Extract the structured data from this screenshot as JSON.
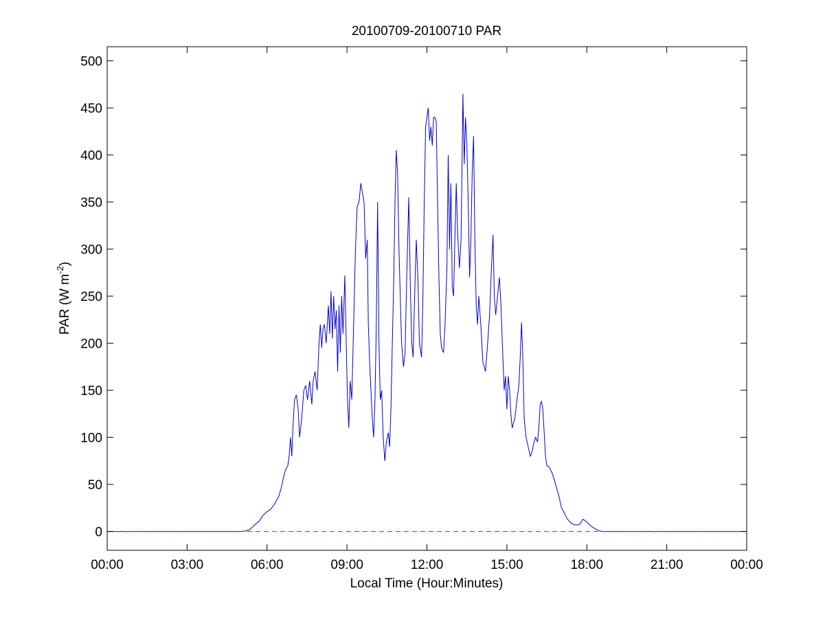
{
  "chart_data": {
    "type": "line",
    "title": "20100709-20100710 PAR",
    "xlabel": "Local Time (Hour:Minutes)",
    "ylabel": {
      "prefix": "PAR (W m",
      "superscript": "-2",
      "suffix": ")"
    },
    "x_unit": "hours",
    "xlim": [
      0,
      24
    ],
    "ylim": [
      -20,
      515
    ],
    "x_ticks": [
      0,
      3,
      6,
      9,
      12,
      15,
      18,
      21,
      24
    ],
    "x_tick_labels": [
      "00:00",
      "03:00",
      "06:00",
      "09:00",
      "12:00",
      "15:00",
      "18:00",
      "21:00",
      "00:00"
    ],
    "y_ticks": [
      0,
      50,
      100,
      150,
      200,
      250,
      300,
      350,
      400,
      450,
      500
    ],
    "y_tick_labels": [
      "0",
      "50",
      "100",
      "150",
      "200",
      "250",
      "300",
      "350",
      "400",
      "450",
      "500"
    ],
    "grid": false,
    "legend": "none",
    "series": [
      {
        "color": "#0000cc",
        "style": "solid",
        "points": [
          [
            0,
            0
          ],
          [
            5.0,
            0
          ],
          [
            5.2,
            0.5
          ],
          [
            5.35,
            2
          ],
          [
            5.5,
            6
          ],
          [
            5.7,
            11
          ],
          [
            5.85,
            17
          ],
          [
            6.0,
            21
          ],
          [
            6.15,
            24
          ],
          [
            6.3,
            30
          ],
          [
            6.45,
            38
          ],
          [
            6.55,
            48
          ],
          [
            6.62,
            58
          ],
          [
            6.7,
            66
          ],
          [
            6.78,
            70
          ],
          [
            6.83,
            80
          ],
          [
            6.88,
            100
          ],
          [
            6.93,
            80
          ],
          [
            6.97,
            110
          ],
          [
            7.03,
            140
          ],
          [
            7.1,
            145
          ],
          [
            7.17,
            130
          ],
          [
            7.22,
            100
          ],
          [
            7.3,
            120
          ],
          [
            7.38,
            150
          ],
          [
            7.45,
            155
          ],
          [
            7.52,
            140
          ],
          [
            7.6,
            160
          ],
          [
            7.68,
            135
          ],
          [
            7.73,
            160
          ],
          [
            7.8,
            170
          ],
          [
            7.88,
            150
          ],
          [
            7.95,
            200
          ],
          [
            8.0,
            220
          ],
          [
            8.05,
            195
          ],
          [
            8.1,
            215
          ],
          [
            8.15,
            220
          ],
          [
            8.22,
            200
          ],
          [
            8.3,
            240
          ],
          [
            8.35,
            210
          ],
          [
            8.4,
            255
          ],
          [
            8.45,
            205
          ],
          [
            8.5,
            250
          ],
          [
            8.55,
            215
          ],
          [
            8.6,
            235
          ],
          [
            8.65,
            170
          ],
          [
            8.7,
            240
          ],
          [
            8.75,
            190
          ],
          [
            8.8,
            250
          ],
          [
            8.85,
            210
          ],
          [
            8.92,
            272
          ],
          [
            8.97,
            200
          ],
          [
            9.02,
            140
          ],
          [
            9.07,
            110
          ],
          [
            9.12,
            160
          ],
          [
            9.18,
            140
          ],
          [
            9.25,
            220
          ],
          [
            9.32,
            300
          ],
          [
            9.38,
            345
          ],
          [
            9.45,
            350
          ],
          [
            9.52,
            370
          ],
          [
            9.58,
            360
          ],
          [
            9.64,
            350
          ],
          [
            9.7,
            290
          ],
          [
            9.76,
            310
          ],
          [
            9.8,
            220
          ],
          [
            9.85,
            180
          ],
          [
            9.9,
            150
          ],
          [
            9.95,
            120
          ],
          [
            10.0,
            100
          ],
          [
            10.05,
            140
          ],
          [
            10.1,
            220
          ],
          [
            10.15,
            350
          ],
          [
            10.2,
            200
          ],
          [
            10.25,
            140
          ],
          [
            10.3,
            150
          ],
          [
            10.36,
            100
          ],
          [
            10.42,
            75
          ],
          [
            10.48,
            95
          ],
          [
            10.55,
            105
          ],
          [
            10.6,
            90
          ],
          [
            10.65,
            130
          ],
          [
            10.7,
            200
          ],
          [
            10.75,
            260
          ],
          [
            10.8,
            350
          ],
          [
            10.85,
            405
          ],
          [
            10.9,
            380
          ],
          [
            10.95,
            300
          ],
          [
            11.0,
            250
          ],
          [
            11.05,
            200
          ],
          [
            11.12,
            175
          ],
          [
            11.18,
            190
          ],
          [
            11.25,
            280
          ],
          [
            11.32,
            355
          ],
          [
            11.38,
            260
          ],
          [
            11.43,
            200
          ],
          [
            11.48,
            185
          ],
          [
            11.55,
            260
          ],
          [
            11.6,
            310
          ],
          [
            11.66,
            270
          ],
          [
            11.72,
            200
          ],
          [
            11.8,
            185
          ],
          [
            11.85,
            250
          ],
          [
            11.9,
            350
          ],
          [
            11.95,
            430
          ],
          [
            12.0,
            440
          ],
          [
            12.05,
            450
          ],
          [
            12.1,
            415
          ],
          [
            12.15,
            430
          ],
          [
            12.2,
            410
          ],
          [
            12.25,
            440
          ],
          [
            12.3,
            440
          ],
          [
            12.35,
            435
          ],
          [
            12.4,
            350
          ],
          [
            12.45,
            270
          ],
          [
            12.5,
            210
          ],
          [
            12.55,
            195
          ],
          [
            12.62,
            190
          ],
          [
            12.68,
            220
          ],
          [
            12.75,
            280
          ],
          [
            12.8,
            400
          ],
          [
            12.85,
            300
          ],
          [
            12.9,
            370
          ],
          [
            12.95,
            260
          ],
          [
            13.0,
            250
          ],
          [
            13.05,
            310
          ],
          [
            13.1,
            370
          ],
          [
            13.15,
            320
          ],
          [
            13.22,
            280
          ],
          [
            13.28,
            310
          ],
          [
            13.35,
            465
          ],
          [
            13.4,
            390
          ],
          [
            13.45,
            440
          ],
          [
            13.5,
            410
          ],
          [
            13.55,
            350
          ],
          [
            13.6,
            270
          ],
          [
            13.65,
            310
          ],
          [
            13.7,
            380
          ],
          [
            13.75,
            420
          ],
          [
            13.8,
            310
          ],
          [
            13.85,
            240
          ],
          [
            13.9,
            220
          ],
          [
            13.95,
            250
          ],
          [
            14.02,
            220
          ],
          [
            14.1,
            180
          ],
          [
            14.2,
            170
          ],
          [
            14.28,
            200
          ],
          [
            14.35,
            230
          ],
          [
            14.42,
            280
          ],
          [
            14.48,
            315
          ],
          [
            14.53,
            250
          ],
          [
            14.58,
            230
          ],
          [
            14.65,
            250
          ],
          [
            14.72,
            270
          ],
          [
            14.78,
            240
          ],
          [
            14.83,
            200
          ],
          [
            14.9,
            150
          ],
          [
            14.95,
            165
          ],
          [
            15.0,
            130
          ],
          [
            15.05,
            165
          ],
          [
            15.1,
            150
          ],
          [
            15.15,
            125
          ],
          [
            15.2,
            110
          ],
          [
            15.3,
            120
          ],
          [
            15.38,
            140
          ],
          [
            15.45,
            155
          ],
          [
            15.5,
            185
          ],
          [
            15.55,
            222
          ],
          [
            15.6,
            185
          ],
          [
            15.65,
            120
          ],
          [
            15.72,
            100
          ],
          [
            15.8,
            90
          ],
          [
            15.88,
            80
          ],
          [
            15.95,
            85
          ],
          [
            16.02,
            95
          ],
          [
            16.08,
            100
          ],
          [
            16.15,
            95
          ],
          [
            16.2,
            110
          ],
          [
            16.25,
            135
          ],
          [
            16.3,
            138
          ],
          [
            16.35,
            130
          ],
          [
            16.4,
            105
          ],
          [
            16.45,
            80
          ],
          [
            16.5,
            70
          ],
          [
            16.6,
            68
          ],
          [
            16.7,
            62
          ],
          [
            16.78,
            55
          ],
          [
            16.85,
            48
          ],
          [
            16.95,
            38
          ],
          [
            17.05,
            25
          ],
          [
            17.15,
            20
          ],
          [
            17.25,
            14
          ],
          [
            17.4,
            9
          ],
          [
            17.55,
            7
          ],
          [
            17.65,
            7
          ],
          [
            17.75,
            8
          ],
          [
            17.85,
            13
          ],
          [
            17.92,
            12
          ],
          [
            18.0,
            10
          ],
          [
            18.1,
            7
          ],
          [
            18.2,
            5
          ],
          [
            18.3,
            3
          ],
          [
            18.4,
            1.5
          ],
          [
            18.5,
            0.5
          ],
          [
            18.6,
            0
          ],
          [
            21.0,
            0
          ],
          [
            24.0,
            0
          ]
        ]
      },
      {
        "color": "#ff0000",
        "style": "dashed",
        "points": [
          [
            0,
            0
          ],
          [
            24,
            0
          ]
        ]
      }
    ]
  }
}
